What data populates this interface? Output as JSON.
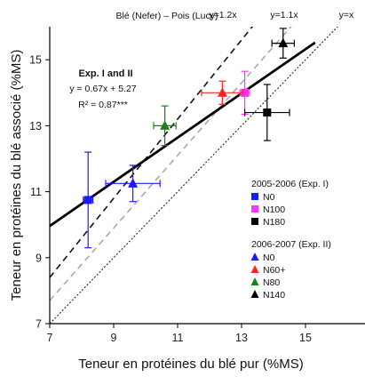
{
  "chart_data": {
    "type": "scatter",
    "title": "Blé (Nefer) – Pois (Lucy)",
    "xlabel": "Teneur en protéines du blé pur (%MS)",
    "ylabel": "Teneur en protéines du blé associé (%MS)",
    "xlim": [
      7,
      16
    ],
    "ylim": [
      7,
      16
    ],
    "xticks": [
      "7",
      "9",
      "11",
      "13",
      "15"
    ],
    "yticks": [
      "7",
      "9",
      "11",
      "13",
      "15"
    ],
    "grid": false,
    "annotation": {
      "heading": "Exp. I and II",
      "equation": "y = 0.67x + 5.27",
      "r2": "R² = 0.87***"
    },
    "reference_lines": [
      {
        "label": "y=1.2x",
        "slope": 1.2,
        "style": "dashed",
        "color": "#111111"
      },
      {
        "label": "y=1.1x",
        "slope": 1.1,
        "style": "dashed",
        "color": "#aaaaaa"
      },
      {
        "label": "y=x",
        "slope": 1.0,
        "style": "dotted",
        "color": "#222222"
      }
    ],
    "regression": {
      "slope": 0.67,
      "intercept": 5.27,
      "x_range": [
        7,
        15.3
      ]
    },
    "legend_groups": [
      {
        "title": "2005-2006 (Exp. I)",
        "marker": "square",
        "items": [
          {
            "label": "N0",
            "color": "#1a1aff"
          },
          {
            "label": "N100",
            "color": "#ff33ff"
          },
          {
            "label": "N180",
            "color": "#000000"
          }
        ]
      },
      {
        "title": "2006-2007 (Exp. II)",
        "marker": "triangle",
        "items": [
          {
            "label": "N0",
            "color": "#1a1aff"
          },
          {
            "label": "N60+",
            "color": "#ff2222"
          },
          {
            "label": "N80",
            "color": "#118811"
          },
          {
            "label": "N140",
            "color": "#000000"
          }
        ]
      }
    ],
    "series": [
      {
        "name": "N0",
        "group": "2005-2006 (Exp. I)",
        "marker": "square",
        "color": "#1a1aff",
        "points": [
          {
            "x": 8.2,
            "y": 10.75,
            "xerr": 0.15,
            "yerr": 1.45
          }
        ]
      },
      {
        "name": "N100",
        "group": "2005-2006 (Exp. I)",
        "marker": "square",
        "color": "#ff33ff",
        "points": [
          {
            "x": 13.1,
            "y": 14.0,
            "xerr": 0.15,
            "yerr": 0.65
          }
        ]
      },
      {
        "name": "N180",
        "group": "2005-2006 (Exp. I)",
        "marker": "square",
        "color": "#000000",
        "points": [
          {
            "x": 13.8,
            "y": 13.4,
            "xerr": 0.7,
            "yerr": 0.85
          }
        ]
      },
      {
        "name": "N0",
        "group": "2006-2007 (Exp. II)",
        "marker": "triangle",
        "color": "#1a1aff",
        "points": [
          {
            "x": 9.6,
            "y": 11.25,
            "xerr": 0.85,
            "yerr": 0.55
          }
        ]
      },
      {
        "name": "N60+",
        "group": "2006-2007 (Exp. II)",
        "marker": "triangle",
        "color": "#ff2222",
        "points": [
          {
            "x": 12.4,
            "y": 14.0,
            "xerr": 0.65,
            "yerr": 0.35
          }
        ]
      },
      {
        "name": "N80",
        "group": "2006-2007 (Exp. II)",
        "marker": "triangle",
        "color": "#118811",
        "points": [
          {
            "x": 10.6,
            "y": 13.0,
            "xerr": 0.35,
            "yerr": 0.6
          }
        ]
      },
      {
        "name": "N140",
        "group": "2006-2007 (Exp. II)",
        "marker": "triangle",
        "color": "#000000",
        "points": [
          {
            "x": 14.3,
            "y": 15.5,
            "xerr": 0.35,
            "yerr": 0.45
          }
        ]
      }
    ]
  }
}
